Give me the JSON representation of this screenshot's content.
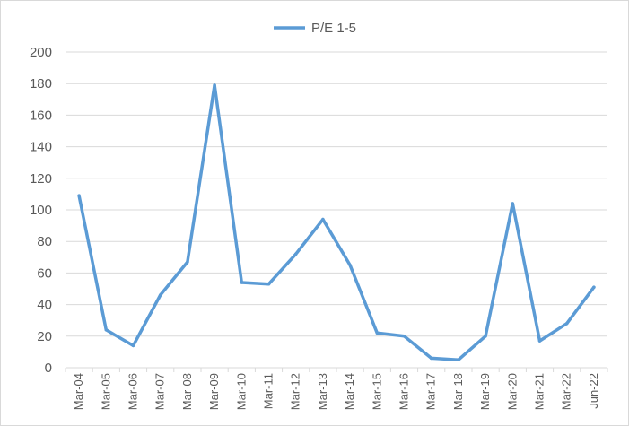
{
  "chart_data": {
    "type": "line",
    "title": "",
    "xlabel": "",
    "ylabel": "",
    "legend_position": "top",
    "grid": true,
    "ylim": [
      0,
      200
    ],
    "yticks": [
      "0",
      "20",
      "40",
      "60",
      "80",
      "100",
      "120",
      "140",
      "160",
      "180",
      "200"
    ],
    "categories": [
      "Mar-04",
      "Mar-05",
      "Mar-06",
      "Mar-07",
      "Mar-08",
      "Mar-09",
      "Mar-10",
      "Mar-11",
      "Mar-12",
      "Mar-13",
      "Mar-14",
      "Mar-15",
      "Mar-16",
      "Mar-17",
      "Mar-18",
      "Mar-19",
      "Mar-20",
      "Mar-21",
      "Mar-22",
      "Jun-22"
    ],
    "series": [
      {
        "name": "P/E 1-5",
        "color": "#5b9bd5",
        "values": [
          109,
          24,
          14,
          46,
          67,
          179,
          54,
          53,
          72,
          94,
          65,
          22,
          20,
          6,
          5,
          20,
          104,
          17,
          28,
          51
        ]
      }
    ]
  }
}
